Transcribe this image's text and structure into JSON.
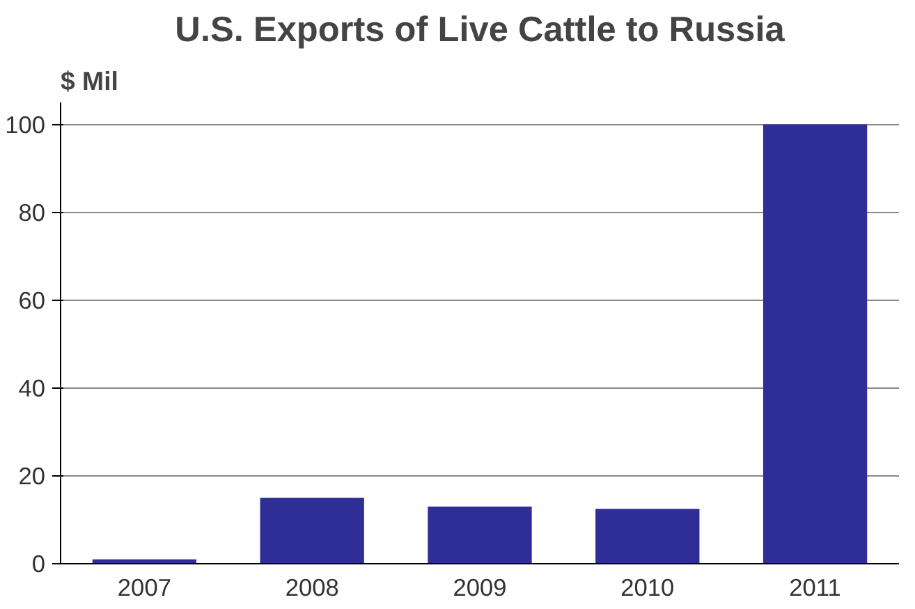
{
  "chart_data": {
    "type": "bar",
    "title": "U.S. Exports of Live Cattle to Russia",
    "ylabel": "$ Mil",
    "categories": [
      "2007",
      "2008",
      "2009",
      "2010",
      "2011"
    ],
    "values": [
      1,
      15,
      13,
      12.5,
      100
    ],
    "color": "#2e2e96",
    "ylim": [
      0,
      105
    ],
    "yticks": [
      0,
      20,
      40,
      60,
      80,
      100
    ],
    "grid": "y"
  }
}
